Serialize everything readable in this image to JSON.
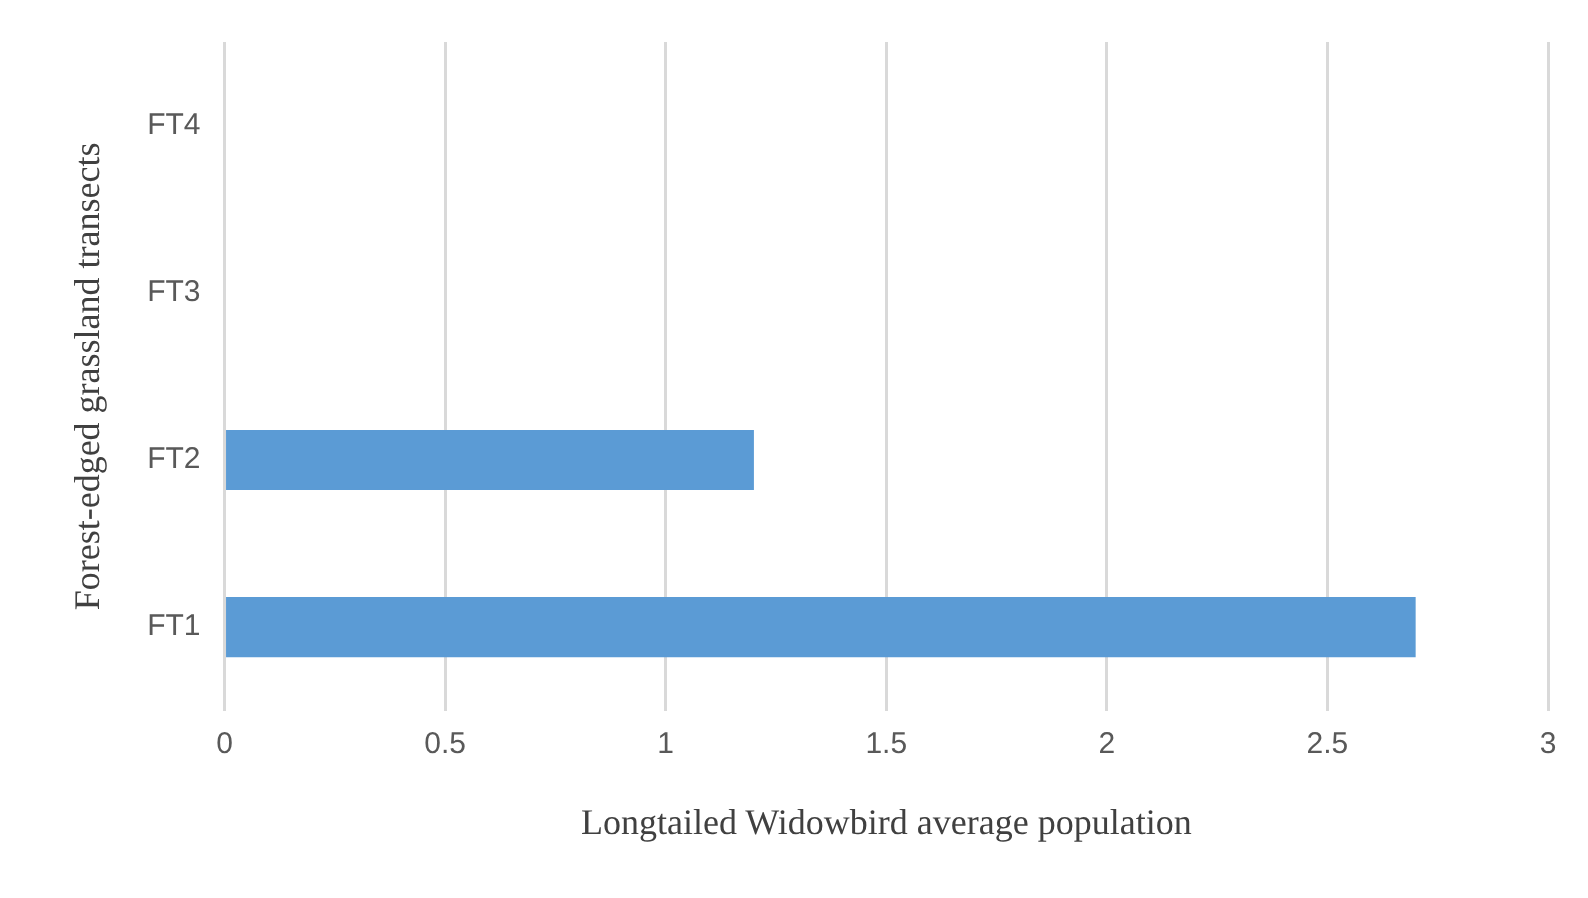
{
  "chart_data": {
    "type": "bar",
    "orientation": "horizontal",
    "categories": [
      "FT4",
      "FT3",
      "FT2",
      "FT1"
    ],
    "values": [
      0,
      0,
      1.2,
      2.7
    ],
    "color": "#5b9bd5",
    "xlabel": "Longtailed Widowbird average population",
    "ylabel": "Forest-edged grassland transects",
    "xlim": [
      0,
      3
    ],
    "xticks": [
      0,
      0.5,
      1,
      1.5,
      2,
      2.5,
      3
    ],
    "grid": "x"
  }
}
